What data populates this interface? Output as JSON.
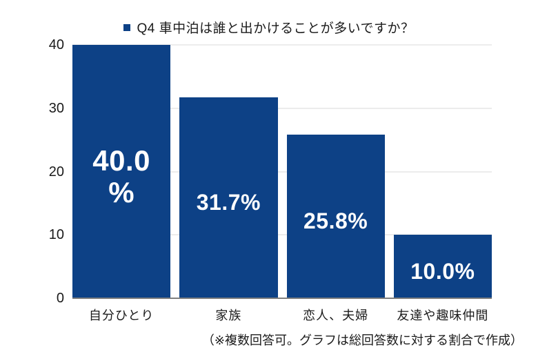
{
  "chart_data": {
    "type": "bar",
    "title": "Q4 車中泊は誰と出かけることが多いですか？",
    "categories": [
      "自分ひとり",
      "家族",
      "恋人、夫婦",
      "友達や趣味仲間"
    ],
    "values": [
      40.0,
      31.7,
      25.8,
      10.0
    ],
    "value_labels": [
      "40.0 %",
      "31.7%",
      "25.8%",
      "10.0%"
    ],
    "value_label_lines": [
      [
        "40.0",
        "%"
      ],
      [
        "31.7%"
      ],
      [
        "25.8%"
      ],
      [
        "10.0%"
      ]
    ],
    "unit": "%",
    "ylim": [
      0,
      40
    ],
    "yticks": [
      0,
      10,
      20,
      30,
      40
    ],
    "grid": true,
    "legend_position": "top",
    "bar_color": "#0d4186",
    "grid_color": "#d9d9d9",
    "axis_line_color": "#7f7f7f",
    "value_label_color": "#ffffff",
    "value_label_sizes": [
      42,
      32,
      32,
      32
    ],
    "note": "（※複数回答可。グラフは総回答数に対する割合で作成）"
  }
}
